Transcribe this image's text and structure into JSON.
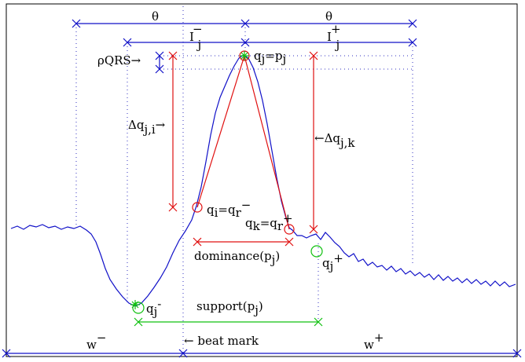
{
  "colors": {
    "signal": "#1010c8",
    "blue": "#1010c8",
    "red": "#e01010",
    "green": "#10c010",
    "frame": "#000000",
    "dots": "#3030c0"
  },
  "labels": {
    "theta_left": "θ",
    "theta_right": "θ",
    "i_minus": {
      "main": "I",
      "sub": "j",
      "sup": "−"
    },
    "i_plus": {
      "main": "I",
      "sub": "j",
      "sup": "+"
    },
    "rho_qrs": "ρQRS→",
    "qj_eq_pj": {
      "a": "q",
      "a_sub": "j",
      "eq": "=p",
      "b_sub": "j"
    },
    "delta_q_ji": {
      "main": "Δq",
      "sub": "j,i",
      "arrow": "→"
    },
    "delta_q_jk": {
      "arrow": "←",
      "main": "Δq",
      "sub": "j,k"
    },
    "qi_eq_qr_minus": {
      "a": "q",
      "a_sub": "i",
      "eq": "=q",
      "b_sub": "r",
      "b_sup": "−"
    },
    "qk_eq_qr_plus": {
      "a": "q",
      "a_sub": "k",
      "eq": "=q",
      "b_sub": "r",
      "b_sup": "+"
    },
    "dominance": {
      "main": "dominance(p",
      "sub": "j",
      "close": ")"
    },
    "qj_plus": {
      "main": "q",
      "sub": "j",
      "sup": "+"
    },
    "qj_minus": {
      "main": "q",
      "sub": "j",
      "sup": "-"
    },
    "support": {
      "main": "support(p",
      "sub": "j",
      "close": ")"
    },
    "w_minus": {
      "main": "w",
      "sup": "−"
    },
    "w_plus": {
      "main": "w",
      "sup": "+"
    },
    "beat_mark": "← beat mark"
  }
}
